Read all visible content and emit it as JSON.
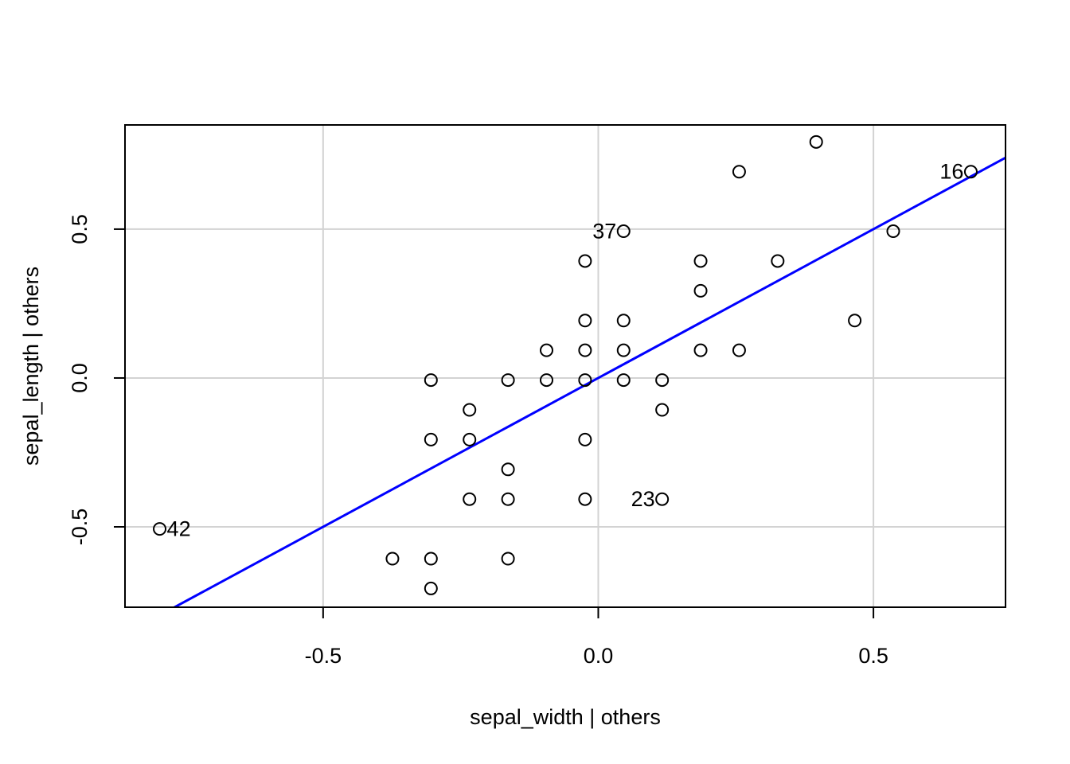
{
  "chart_data": {
    "type": "scatter",
    "title": "",
    "xlabel": "sepal_width | others",
    "ylabel": "sepal_length  | others",
    "xlim": [
      -0.86,
      0.74
    ],
    "ylim": [
      -0.77,
      0.85
    ],
    "grid": true,
    "x_ticks": [
      {
        "value": -0.5,
        "label": "-0.5"
      },
      {
        "value": 0.0,
        "label": "0.0"
      },
      {
        "value": 0.5,
        "label": "0.5"
      }
    ],
    "y_ticks": [
      {
        "value": -0.5,
        "label": "-0.5"
      },
      {
        "value": 0.0,
        "label": "0.0"
      },
      {
        "value": 0.5,
        "label": "0.5"
      }
    ],
    "points": [
      {
        "x": -0.797,
        "y": -0.507
      },
      {
        "x": 0.677,
        "y": 0.693
      },
      {
        "x": 0.046,
        "y": 0.493
      },
      {
        "x": 0.116,
        "y": -0.407
      },
      {
        "x": 0.396,
        "y": 0.793
      },
      {
        "x": 0.256,
        "y": 0.693
      },
      {
        "x": 0.536,
        "y": 0.493
      },
      {
        "x": -0.024,
        "y": 0.393
      },
      {
        "x": 0.186,
        "y": 0.393
      },
      {
        "x": 0.326,
        "y": 0.393
      },
      {
        "x": 0.186,
        "y": 0.293
      },
      {
        "x": -0.024,
        "y": 0.193
      },
      {
        "x": 0.046,
        "y": 0.193
      },
      {
        "x": 0.466,
        "y": 0.193
      },
      {
        "x": -0.094,
        "y": 0.093
      },
      {
        "x": -0.024,
        "y": 0.093
      },
      {
        "x": 0.046,
        "y": 0.093
      },
      {
        "x": 0.186,
        "y": 0.093
      },
      {
        "x": 0.256,
        "y": 0.093
      },
      {
        "x": -0.304,
        "y": -0.007
      },
      {
        "x": -0.164,
        "y": -0.007
      },
      {
        "x": -0.094,
        "y": -0.007
      },
      {
        "x": -0.024,
        "y": -0.007
      },
      {
        "x": 0.046,
        "y": -0.007
      },
      {
        "x": 0.116,
        "y": -0.007
      },
      {
        "x": -0.234,
        "y": -0.107
      },
      {
        "x": 0.116,
        "y": -0.107
      },
      {
        "x": -0.304,
        "y": -0.207
      },
      {
        "x": -0.234,
        "y": -0.207
      },
      {
        "x": -0.024,
        "y": -0.207
      },
      {
        "x": -0.164,
        "y": -0.307
      },
      {
        "x": -0.234,
        "y": -0.407
      },
      {
        "x": -0.164,
        "y": -0.407
      },
      {
        "x": -0.024,
        "y": -0.407
      },
      {
        "x": -0.374,
        "y": -0.607
      },
      {
        "x": -0.304,
        "y": -0.607
      },
      {
        "x": -0.164,
        "y": -0.607
      },
      {
        "x": -0.304,
        "y": -0.707
      }
    ],
    "point_labels": [
      {
        "text": "42",
        "x": -0.797,
        "y": -0.507,
        "side": "right"
      },
      {
        "text": "16",
        "x": 0.677,
        "y": 0.693,
        "side": "left"
      },
      {
        "text": "37",
        "x": 0.046,
        "y": 0.493,
        "side": "left"
      },
      {
        "text": "23",
        "x": 0.116,
        "y": -0.407,
        "side": "left"
      }
    ],
    "fit_line": {
      "slope": 1.0,
      "intercept": 0.0,
      "color": "#0000ff"
    },
    "colors": {
      "points": "#000000",
      "grid": "#d3d3d3",
      "frame": "#000000",
      "fit_line": "#0000ff"
    }
  }
}
